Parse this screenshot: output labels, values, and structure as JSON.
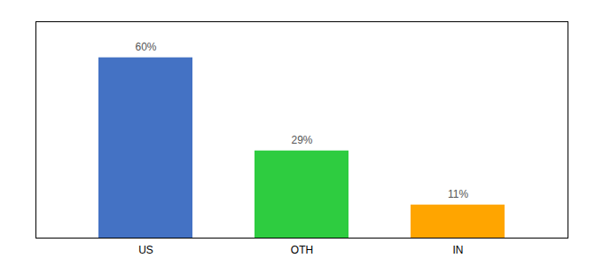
{
  "chart_data": {
    "type": "bar",
    "categories": [
      "US",
      "OTH",
      "IN"
    ],
    "values": [
      60,
      29,
      11
    ],
    "value_labels": [
      "60%",
      "29%",
      "11%"
    ],
    "colors": [
      "#4472C4",
      "#2ECC40",
      "#FFA500"
    ],
    "ylim": [
      0,
      72
    ],
    "data_labels": true,
    "tick_labels": "x",
    "grid": false
  }
}
